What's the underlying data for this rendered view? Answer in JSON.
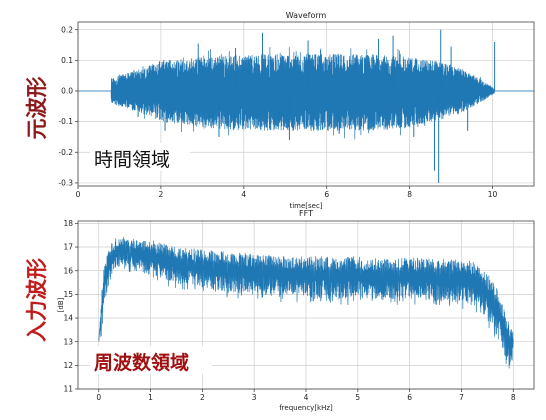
{
  "colors": {
    "series": "#1f77b4",
    "side_label_top": "#8b1a1a",
    "side_label_bottom": "#c01a1a",
    "annot_top": "#111111",
    "annot_bottom": "#a01010"
  },
  "side_labels": {
    "top": "元波形",
    "bottom": "入力波形"
  },
  "chart_data": [
    {
      "type": "line",
      "title": "Waveform",
      "xlabel": "time[sec]",
      "ylabel": "",
      "xlim": [
        0,
        11
      ],
      "ylim": [
        -0.31,
        0.225
      ],
      "xticks": [
        0,
        2,
        4,
        6,
        8,
        10
      ],
      "yticks": [
        -0.3,
        -0.2,
        -0.1,
        0.0,
        0.1,
        0.2
      ],
      "ytick_labels": [
        "-0.3",
        "-0.2",
        "-0.1",
        "0.0",
        "0.1",
        "0.2"
      ],
      "grid": true,
      "annotation": "時間領域",
      "series": [
        {
          "signal_start": 0.8,
          "signal_end": 10.05,
          "envelope_x": [
            0.0,
            0.79,
            0.8,
            1.0,
            1.5,
            2.0,
            3.0,
            4.0,
            5.0,
            6.0,
            7.0,
            8.0,
            8.5,
            9.0,
            9.5,
            9.8,
            10.05,
            10.06,
            11.0
          ],
          "envelope_upper": [
            0.0,
            0.0,
            0.04,
            0.05,
            0.07,
            0.1,
            0.11,
            0.12,
            0.12,
            0.12,
            0.12,
            0.11,
            0.1,
            0.085,
            0.055,
            0.03,
            0.006,
            0.0,
            0.0
          ],
          "envelope_lower": [
            0.0,
            0.0,
            -0.04,
            -0.05,
            -0.07,
            -0.1,
            -0.12,
            -0.13,
            -0.13,
            -0.13,
            -0.13,
            -0.12,
            -0.1,
            -0.085,
            -0.055,
            -0.03,
            -0.006,
            0.0,
            0.0
          ],
          "peaks": [
            [
              1.45,
              -0.085
            ],
            [
              2.1,
              -0.13
            ],
            [
              2.9,
              0.155
            ],
            [
              3.4,
              -0.15
            ],
            [
              3.8,
              0.14
            ],
            [
              4.45,
              0.19
            ],
            [
              5.1,
              -0.16
            ],
            [
              5.55,
              0.165
            ],
            [
              6.3,
              -0.14
            ],
            [
              7.25,
              0.17
            ],
            [
              7.6,
              0.18
            ],
            [
              8.1,
              -0.15
            ],
            [
              8.6,
              -0.26
            ],
            [
              8.7,
              -0.3
            ],
            [
              8.75,
              0.2
            ],
            [
              9.0,
              0.145
            ],
            [
              9.4,
              -0.13
            ],
            [
              10.05,
              0.16
            ]
          ]
        }
      ]
    },
    {
      "type": "line",
      "title": "FFT",
      "xlabel": "frequency[kHz]",
      "ylabel": "[dB]",
      "xlim": [
        -0.4,
        8.4
      ],
      "ylim": [
        11,
        18.1
      ],
      "xticks": [
        0,
        1,
        2,
        3,
        4,
        5,
        6,
        7,
        8
      ],
      "yticks": [
        11,
        12,
        13,
        14,
        15,
        16,
        17,
        18
      ],
      "ytick_labels": [
        "11",
        "12",
        "13",
        "14",
        "15",
        "16",
        "17",
        "18"
      ],
      "grid": true,
      "annotation": "周波数領域",
      "series": [
        {
          "x": [
            0.0,
            0.02,
            0.05,
            0.1,
            0.2,
            0.3,
            0.4,
            0.5,
            0.7,
            1.0,
            1.5,
            2.0,
            2.5,
            3.0,
            3.5,
            4.0,
            4.5,
            5.0,
            5.5,
            6.0,
            6.5,
            7.0,
            7.2,
            7.4,
            7.5,
            7.6,
            7.7,
            7.8,
            7.9,
            7.95,
            8.0
          ],
          "upper": [
            13.2,
            13.8,
            14.9,
            16.2,
            17.0,
            17.3,
            17.5,
            17.5,
            17.3,
            17.3,
            17.0,
            16.9,
            16.8,
            16.7,
            16.6,
            16.6,
            16.6,
            16.6,
            16.5,
            16.55,
            16.5,
            16.5,
            16.4,
            16.2,
            15.9,
            15.6,
            15.2,
            14.6,
            14.0,
            13.6,
            13.4
          ],
          "lower": [
            12.9,
            13.1,
            13.4,
            14.6,
            15.4,
            16.0,
            16.2,
            16.3,
            16.0,
            15.8,
            15.5,
            15.3,
            15.1,
            15.0,
            14.9,
            14.9,
            14.8,
            14.8,
            14.8,
            14.8,
            14.7,
            14.6,
            14.5,
            14.2,
            13.9,
            13.6,
            13.2,
            12.6,
            12.0,
            11.9,
            12.3
          ]
        }
      ]
    }
  ]
}
